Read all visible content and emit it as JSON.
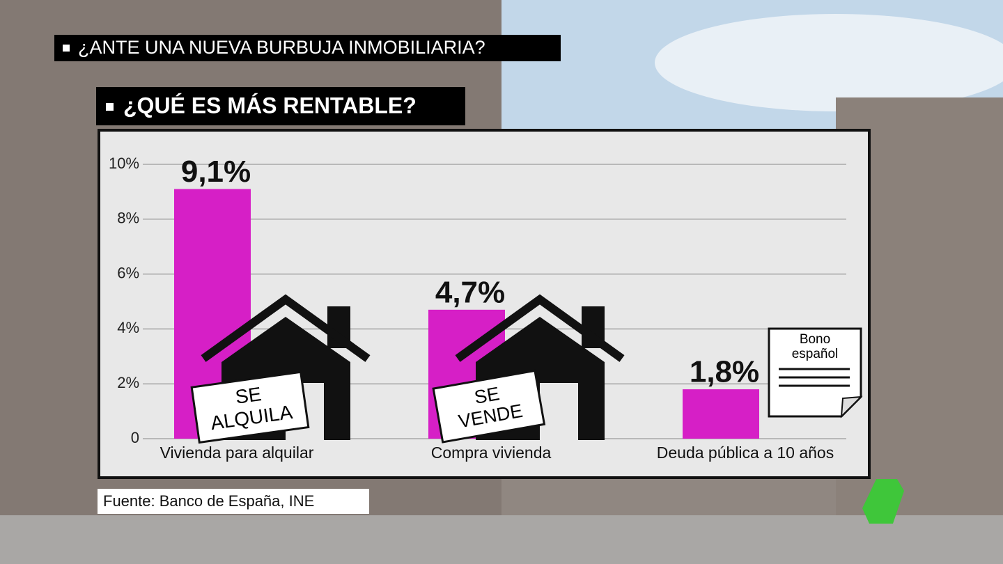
{
  "headlines": [
    "¿ANTE UNA NUEVA BURBUJA INMOBILIARIA?",
    "¿QUÉ ES MÁS RENTABLE?"
  ],
  "source": "Fuente: Banco de España, INE",
  "signs": [
    {
      "lines": [
        "SE",
        "ALQUILA"
      ]
    },
    {
      "lines": [
        "SE",
        "VENDE"
      ]
    }
  ],
  "bond_note": {
    "lines": [
      "Bono",
      "español"
    ]
  },
  "chart_data": {
    "type": "bar",
    "categories": [
      "Vivienda para alquilar",
      "Compra vivienda",
      "Deuda pública a 10 años"
    ],
    "values": [
      9.1,
      4.7,
      1.8
    ],
    "value_labels": [
      "9,1%",
      "4,7%",
      "1,8%"
    ],
    "color": "#d61fc6",
    "ylim": [
      0,
      10
    ],
    "yticks": [
      0,
      {
        "value": 2,
        "label": "2%"
      },
      {
        "value": 4,
        "label": "4%"
      },
      {
        "value": 6,
        "label": "6%"
      },
      {
        "value": 8,
        "label": "8%"
      },
      {
        "value": 10,
        "label": "10%"
      }
    ],
    "grid": true
  }
}
